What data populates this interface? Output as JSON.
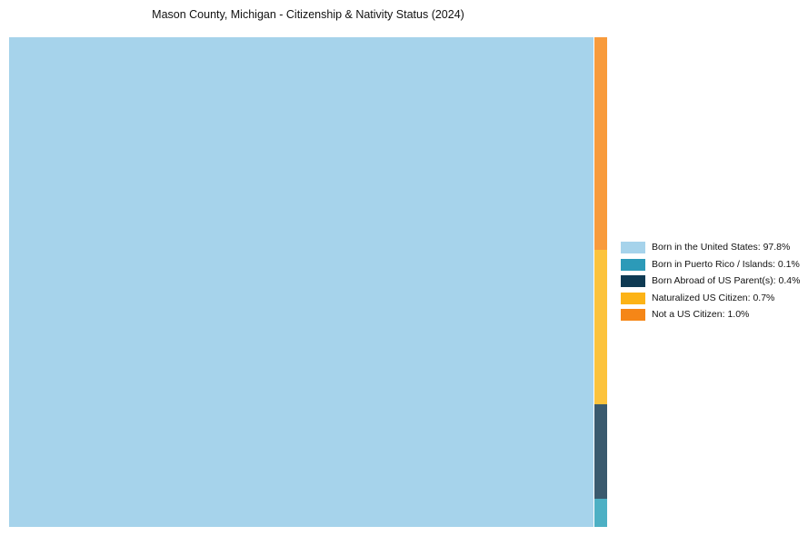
{
  "title": "Mason County, Michigan - Citizenship & Nativity Status (2024)",
  "chart_data": {
    "type": "treemap",
    "title": "Mason County, Michigan - Citizenship & Nativity Status (2024)",
    "unit": "%",
    "legend_position": "right-center",
    "minor_total_share": 2.2,
    "strip_order_top_to_bottom": [
      "Not a US Citizen",
      "Naturalized US Citizen",
      "Born Abroad of US Parent(s)",
      "Born in Puerto Rico / Islands"
    ],
    "segments": [
      {
        "label": "Born in the United States",
        "value_pct": 97.8,
        "legend_text": "Born in the United States: 97.8%",
        "fill": "#A6D3EB",
        "legend_color": "#A6D3EB",
        "area_share_est": 97.8
      },
      {
        "label": "Born in Puerto Rico / Islands",
        "value_pct": 0.1,
        "legend_text": "Born in Puerto Rico / Islands: 0.1%",
        "fill": "#4DB0C4",
        "legend_color": "#2C9AB8",
        "area_share_est": 0.127
      },
      {
        "label": "Born Abroad of US Parent(s)",
        "value_pct": 0.4,
        "legend_text": "Born Abroad of US Parent(s): 0.4%",
        "fill": "#3A5A6E",
        "legend_color": "#0E3A53",
        "area_share_est": 0.424
      },
      {
        "label": "Naturalized US Citizen",
        "value_pct": 0.7,
        "legend_text": "Naturalized US Citizen: 0.7%",
        "fill": "#FCC33C",
        "legend_color": "#FCB316",
        "area_share_est": 0.694
      },
      {
        "label": "Not a US Citizen",
        "value_pct": 1.0,
        "legend_text": "Not a US Citizen: 1.0%",
        "fill": "#F89B3C",
        "legend_color": "#F58617",
        "area_share_est": 0.955
      }
    ]
  }
}
